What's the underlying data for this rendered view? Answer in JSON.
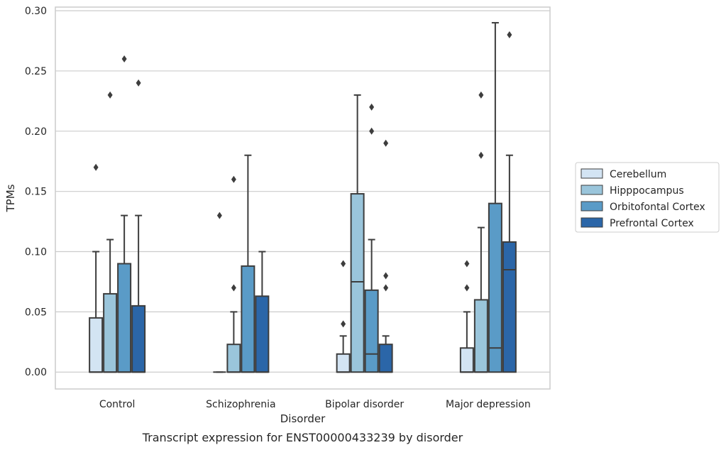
{
  "chart_data": {
    "type": "box",
    "title": "",
    "caption": "Transcript expression for ENST00000433239 by disorder",
    "xlabel": "Disorder",
    "ylabel": "TPMs",
    "ylim": [
      -0.014,
      0.303
    ],
    "yticks": [
      "0.00",
      "0.05",
      "0.10",
      "0.15",
      "0.20",
      "0.25",
      "0.30"
    ],
    "grid": "horizontal",
    "legend_position": "right",
    "categories": [
      "Control",
      "Schizophrenia",
      "Bipolar disorder",
      "Major depression"
    ],
    "series": [
      {
        "name": "Cerebellum",
        "color": "#d3e4f3",
        "boxes": [
          {
            "q1": 0.0,
            "median": 0.0,
            "q3": 0.045,
            "whisker_low": 0.0,
            "whisker_high": 0.1,
            "outliers": [
              0.17
            ]
          },
          {
            "q1": 0.0,
            "median": 0.0,
            "q3": 0.0,
            "whisker_low": 0.0,
            "whisker_high": 0.0,
            "outliers": [
              0.13
            ]
          },
          {
            "q1": 0.0,
            "median": 0.0,
            "q3": 0.015,
            "whisker_low": 0.0,
            "whisker_high": 0.03,
            "outliers": [
              0.04,
              0.09
            ]
          },
          {
            "q1": 0.0,
            "median": 0.0,
            "q3": 0.02,
            "whisker_low": 0.0,
            "whisker_high": 0.05,
            "outliers": [
              0.07,
              0.09
            ]
          }
        ]
      },
      {
        "name": "Hipppocampus",
        "color": "#9ac5db",
        "boxes": [
          {
            "q1": 0.0,
            "median": 0.0,
            "q3": 0.065,
            "whisker_low": 0.0,
            "whisker_high": 0.11,
            "outliers": [
              0.23
            ]
          },
          {
            "q1": 0.0,
            "median": 0.0,
            "q3": 0.023,
            "whisker_low": 0.0,
            "whisker_high": 0.05,
            "outliers": [
              0.07,
              0.16
            ]
          },
          {
            "q1": 0.0,
            "median": 0.075,
            "q3": 0.148,
            "whisker_low": 0.0,
            "whisker_high": 0.23,
            "outliers": []
          },
          {
            "q1": 0.0,
            "median": 0.0,
            "q3": 0.06,
            "whisker_low": 0.0,
            "whisker_high": 0.12,
            "outliers": [
              0.18,
              0.23
            ]
          }
        ]
      },
      {
        "name": "Orbitofontal Cortex",
        "color": "#5a9bc7",
        "boxes": [
          {
            "q1": 0.0,
            "median": 0.0,
            "q3": 0.09,
            "whisker_low": 0.0,
            "whisker_high": 0.13,
            "outliers": [
              0.26
            ]
          },
          {
            "q1": 0.0,
            "median": 0.0,
            "q3": 0.088,
            "whisker_low": 0.0,
            "whisker_high": 0.18,
            "outliers": []
          },
          {
            "q1": 0.0,
            "median": 0.015,
            "q3": 0.068,
            "whisker_low": 0.0,
            "whisker_high": 0.11,
            "outliers": [
              0.2,
              0.22
            ]
          },
          {
            "q1": 0.0,
            "median": 0.02,
            "q3": 0.14,
            "whisker_low": 0.0,
            "whisker_high": 0.29,
            "outliers": []
          }
        ]
      },
      {
        "name": "Prefrontal Cortex",
        "color": "#2b66a8",
        "boxes": [
          {
            "q1": 0.0,
            "median": 0.0,
            "q3": 0.055,
            "whisker_low": 0.0,
            "whisker_high": 0.13,
            "outliers": [
              0.24
            ]
          },
          {
            "q1": 0.0,
            "median": 0.0,
            "q3": 0.063,
            "whisker_low": 0.0,
            "whisker_high": 0.1,
            "outliers": []
          },
          {
            "q1": 0.0,
            "median": 0.0,
            "q3": 0.023,
            "whisker_low": 0.0,
            "whisker_high": 0.03,
            "outliers": [
              0.07,
              0.08,
              0.19
            ]
          },
          {
            "q1": 0.0,
            "median": 0.085,
            "q3": 0.108,
            "whisker_low": 0.0,
            "whisker_high": 0.18,
            "outliers": [
              0.28
            ]
          }
        ]
      }
    ]
  }
}
